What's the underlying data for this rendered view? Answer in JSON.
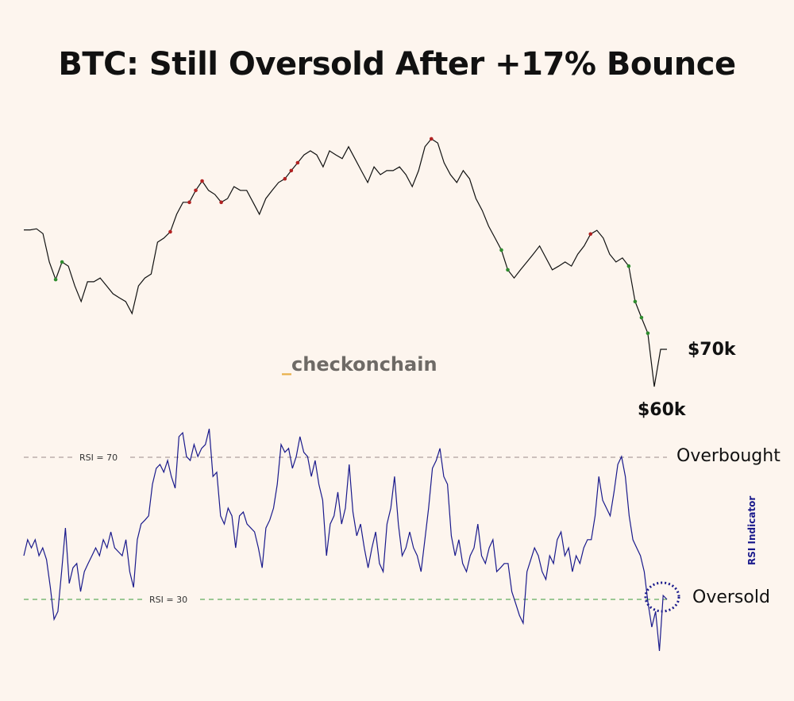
{
  "title": "BTC: Still Oversold After +17% Bounce",
  "watermark": {
    "prefix": "_",
    "text": "checkonchain",
    "prefix_color": "#e8b04a",
    "text_color": "#6e6a66"
  },
  "colors": {
    "background": "#fdf5ee",
    "price_line": "#111111",
    "rsi_line": "#1a1a8c",
    "overbought_marker": "#b22222",
    "oversold_marker": "#2e8b2e",
    "rsi70_line": "#9a8a8a",
    "rsi30_line": "#3a9a3a"
  },
  "chart_data": [
    {
      "type": "line",
      "name_panel": "price",
      "title": "",
      "price_labels": [
        "$70k",
        "$60k"
      ],
      "label_values": [
        70,
        60
      ],
      "unit": "thousand USD",
      "values": [
        102,
        102,
        102.3,
        101,
        93.4,
        88.7,
        93.4,
        92.3,
        87,
        82.8,
        88.1,
        88.1,
        89.1,
        87,
        84.9,
        83.8,
        82.8,
        79.6,
        87,
        89.1,
        90.2,
        98.7,
        99.8,
        101.5,
        106.2,
        109.4,
        109.4,
        112.6,
        115.1,
        112.6,
        111.5,
        109.4,
        110.4,
        113.6,
        112.6,
        112.6,
        109.4,
        106.2,
        110.4,
        112.6,
        114.7,
        115.7,
        117.9,
        120,
        122.1,
        123.2,
        122.1,
        118.9,
        123.2,
        122.1,
        121.1,
        124.3,
        121.1,
        117.9,
        114.7,
        118.9,
        116.8,
        117.9,
        117.9,
        118.9,
        116.8,
        113.6,
        117.9,
        124.3,
        126.4,
        125.3,
        120,
        116.8,
        114.7,
        117.9,
        115.7,
        110.4,
        107.2,
        103,
        99.8,
        96.6,
        91.3,
        89.1,
        91.3,
        93.4,
        95.5,
        97.7,
        94.5,
        91.3,
        92.3,
        93.4,
        92.3,
        95.5,
        97.7,
        100.9,
        101.9,
        99.8,
        95.5,
        93.4,
        94.5,
        92.3,
        82.8,
        78.5,
        74.3,
        60,
        70,
        70
      ],
      "overbought_marker_indices": [
        23,
        26,
        27,
        28,
        31,
        41,
        42,
        43,
        64,
        89
      ],
      "oversold_marker_indices": [
        5,
        6,
        75,
        76,
        95,
        96,
        97,
        98
      ],
      "ylim": [
        55,
        130
      ]
    },
    {
      "type": "line",
      "name_panel": "rsi",
      "ylabel": "RSI Indicator",
      "reference_lines": [
        {
          "value": 70,
          "label": "RSI = 70",
          "zone_label": "Overbought"
        },
        {
          "value": 30,
          "label": "RSI = 30",
          "zone_label": "Oversold"
        }
      ],
      "values": [
        42.3,
        46.8,
        44.5,
        46.8,
        42.3,
        44.5,
        41.2,
        33.4,
        24.4,
        26.6,
        37.8,
        50.1,
        34.5,
        38.9,
        40.1,
        32.2,
        37.8,
        40.1,
        42.3,
        44.5,
        42.3,
        46.8,
        44.5,
        49,
        44.5,
        43.4,
        42.3,
        46.8,
        37.8,
        33.4,
        46.8,
        51.2,
        52.3,
        53.5,
        62.4,
        66.9,
        68,
        65.8,
        69.1,
        64.6,
        61.3,
        75.8,
        76.9,
        70.2,
        69.1,
        73.6,
        70.2,
        72.5,
        73.6,
        78,
        64.6,
        65.8,
        53.5,
        51.2,
        55.7,
        53.5,
        44.5,
        53.5,
        54.6,
        51.2,
        50.1,
        49,
        44.5,
        38.9,
        50.1,
        52.3,
        55.7,
        62.4,
        73.6,
        71.4,
        72.5,
        66.9,
        70.2,
        75.8,
        71.4,
        70.2,
        64.6,
        69.1,
        62.4,
        57.9,
        42.3,
        51.2,
        53.5,
        60.2,
        51.2,
        55.7,
        68,
        54.6,
        47.9,
        51.2,
        44.5,
        38.9,
        44.5,
        49,
        40.1,
        37.8,
        51.2,
        55.7,
        64.6,
        51.2,
        42.3,
        44.5,
        49,
        44.5,
        42.3,
        37.8,
        46.8,
        55.7,
        66.9,
        69.1,
        72.5,
        64.6,
        62.4,
        47.9,
        42.3,
        46.8,
        40.1,
        37.8,
        42.3,
        44.5,
        51.2,
        42.3,
        40.1,
        44.5,
        46.8,
        37.8,
        38.9,
        40.1,
        40.1,
        32.2,
        28.9,
        25.5,
        23.3,
        37.8,
        41.2,
        44.5,
        42.3,
        37.8,
        35.6,
        42.3,
        40.1,
        46.8,
        49,
        42.3,
        44.5,
        37.8,
        42.3,
        40.1,
        44.5,
        46.8,
        46.8,
        53.5,
        64.6,
        57.9,
        55.7,
        53.5,
        60.2,
        68,
        70.2,
        64.6,
        53.5,
        46.8,
        44.5,
        42.3,
        37.8,
        28.9,
        22.2,
        26.6,
        15.5,
        31.1,
        30
      ],
      "ylim": [
        10,
        85
      ]
    }
  ]
}
